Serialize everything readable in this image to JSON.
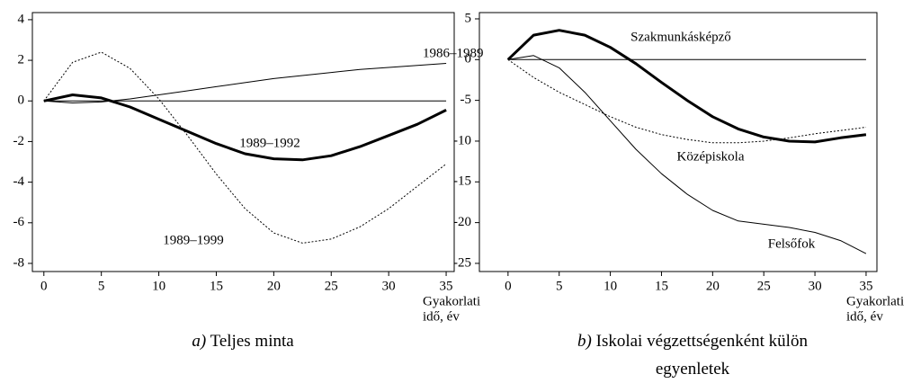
{
  "chart_data": [
    {
      "type": "line",
      "caption_letter": "a)",
      "caption": [
        "Teljes minta"
      ],
      "xlabel": [
        "Gyakorlati",
        "idő, év"
      ],
      "x": [
        0,
        2.5,
        5,
        7.5,
        10,
        12.5,
        15,
        17.5,
        20,
        22.5,
        25,
        27.5,
        30,
        32.5,
        35
      ],
      "xlim": [
        -1,
        35.7
      ],
      "xticks": [
        0,
        5,
        10,
        15,
        20,
        25,
        30,
        35
      ],
      "ylim": [
        -8.4,
        4.35
      ],
      "yticks": [
        -8,
        -6,
        -4,
        -2,
        0,
        2,
        4
      ],
      "zero_line": true,
      "series": [
        {
          "name": "1986–1989",
          "color": "#000",
          "line_style": "thin",
          "values": [
            0,
            -0.1,
            -0.05,
            0.1,
            0.3,
            0.5,
            0.7,
            0.9,
            1.1,
            1.25,
            1.4,
            1.55,
            1.65,
            1.75,
            1.85
          ]
        },
        {
          "name": "1989–1992",
          "color": "#000",
          "line_style": "thick",
          "values": [
            0,
            0.3,
            0.15,
            -0.3,
            -0.9,
            -1.5,
            -2.1,
            -2.6,
            -2.85,
            -2.9,
            -2.7,
            -2.25,
            -1.7,
            -1.15,
            -0.45
          ]
        },
        {
          "name": "1989–1999",
          "color": "#000",
          "line_style": "dotted",
          "values": [
            0,
            1.9,
            2.4,
            1.6,
            0.1,
            -1.7,
            -3.6,
            -5.3,
            -6.5,
            -7,
            -6.8,
            -6.2,
            -5.3,
            -4.2,
            -3.1
          ]
        }
      ]
    },
    {
      "type": "line",
      "caption_letter": "b)",
      "caption": [
        "Iskolai végzettségenként külön",
        "egyenletek"
      ],
      "xlabel": [
        "Gyakorlati",
        "idő, év"
      ],
      "x": [
        0,
        2.5,
        5,
        7.5,
        10,
        12.5,
        15,
        17.5,
        20,
        22.5,
        25,
        27.5,
        30,
        32.5,
        35
      ],
      "xlim": [
        -2.8,
        36.06
      ],
      "xticks": [
        0,
        5,
        10,
        15,
        20,
        25,
        30,
        35
      ],
      "ylim": [
        -26,
        5.77
      ],
      "yticks": [
        -25,
        -20,
        -15,
        -10,
        -5,
        0,
        5
      ],
      "zero_line": true,
      "series": [
        {
          "name": "Szakmunkásképző",
          "color": "#000",
          "line_style": "thick",
          "values": [
            0,
            3.0,
            3.6,
            3.0,
            1.5,
            -0.5,
            -2.8,
            -5,
            -7,
            -8.5,
            -9.5,
            -10,
            -10.1,
            -9.6,
            -9.2
          ]
        },
        {
          "name": "Középiskola",
          "color": "#000",
          "line_style": "dotted",
          "values": [
            0,
            -2.2,
            -4,
            -5.5,
            -7,
            -8.3,
            -9.2,
            -9.8,
            -10.2,
            -10.2,
            -10,
            -9.6,
            -9.1,
            -8.7,
            -8.3
          ]
        },
        {
          "name": "Felsőfok",
          "color": "#000",
          "line_style": "thin",
          "values": [
            0,
            0.5,
            -1,
            -4,
            -7.5,
            -11,
            -14,
            -16.5,
            -18.5,
            -19.8,
            -20.2,
            -20.6,
            -21.2,
            -22.2,
            -23.8
          ]
        }
      ]
    }
  ]
}
